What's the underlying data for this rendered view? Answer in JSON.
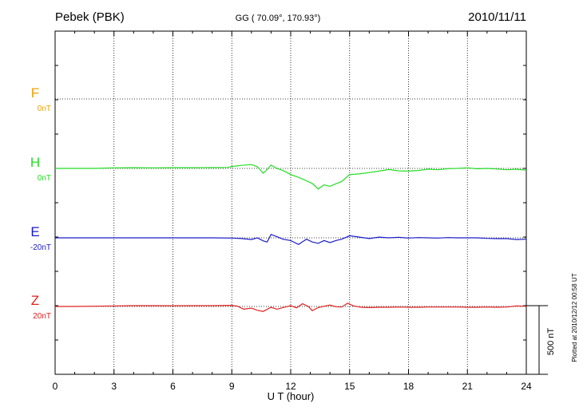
{
  "chart_data": {
    "type": "line",
    "station": "Pebek (PBK)",
    "coords": "GG ( 70.09°, 170.93°)",
    "date": "2010/11/11",
    "xlabel": "U T (hour)",
    "x_ticks": [
      "0",
      "3",
      "6",
      "9",
      "12",
      "15",
      "18",
      "21",
      "24"
    ],
    "xlim": [
      0,
      24
    ],
    "scale_label": "500 nT",
    "plotted_note": "Plotted at 2010/12/12 00:58 UT",
    "grid": true,
    "series": [
      {
        "name": "F",
        "offset": "0nT",
        "color": "#f0a000",
        "points": []
      },
      {
        "name": "H",
        "offset": "0nT",
        "color": "#22dd22",
        "points": [
          [
            0,
            0
          ],
          [
            1,
            0
          ],
          [
            2,
            0
          ],
          [
            3,
            4
          ],
          [
            4,
            5
          ],
          [
            5,
            4
          ],
          [
            6,
            5
          ],
          [
            7,
            5
          ],
          [
            8,
            6
          ],
          [
            8.8,
            7
          ],
          [
            9,
            14
          ],
          [
            9.5,
            22
          ],
          [
            10,
            28
          ],
          [
            10.3,
            12
          ],
          [
            10.6,
            -35
          ],
          [
            10.8,
            -8
          ],
          [
            11,
            24
          ],
          [
            11.3,
            0
          ],
          [
            11.6,
            -15
          ],
          [
            12,
            -45
          ],
          [
            12.4,
            -65
          ],
          [
            12.8,
            -90
          ],
          [
            13.1,
            -110
          ],
          [
            13.4,
            -150
          ],
          [
            13.7,
            -120
          ],
          [
            14,
            -130
          ],
          [
            14.3,
            -112
          ],
          [
            14.6,
            -95
          ],
          [
            15,
            -45
          ],
          [
            15.5,
            -40
          ],
          [
            16,
            -30
          ],
          [
            16.5,
            -20
          ],
          [
            17,
            -8
          ],
          [
            17.5,
            -18
          ],
          [
            18,
            -20
          ],
          [
            18.5,
            -15
          ],
          [
            19,
            -5
          ],
          [
            19.5,
            -10
          ],
          [
            20,
            -2
          ],
          [
            20.5,
            0
          ],
          [
            21,
            4
          ],
          [
            21.5,
            -3
          ],
          [
            22,
            0
          ],
          [
            22.5,
            -4
          ],
          [
            23,
            -10
          ],
          [
            23.5,
            -6
          ],
          [
            24,
            -12
          ]
        ]
      },
      {
        "name": "E",
        "offset": "-20nT",
        "color": "#1a1acc",
        "points": [
          [
            0,
            0
          ],
          [
            1,
            0
          ],
          [
            2,
            0
          ],
          [
            3,
            0
          ],
          [
            4,
            0
          ],
          [
            5,
            0
          ],
          [
            6,
            0
          ],
          [
            7,
            0
          ],
          [
            8,
            0
          ],
          [
            9,
            -2
          ],
          [
            9.5,
            -5
          ],
          [
            10,
            -12
          ],
          [
            10.3,
            0
          ],
          [
            10.6,
            -22
          ],
          [
            10.8,
            -30
          ],
          [
            11,
            25
          ],
          [
            11.3,
            8
          ],
          [
            11.6,
            -10
          ],
          [
            12,
            -20
          ],
          [
            12.4,
            -48
          ],
          [
            12.8,
            -10
          ],
          [
            13.1,
            -30
          ],
          [
            13.4,
            -40
          ],
          [
            13.7,
            -20
          ],
          [
            14,
            -35
          ],
          [
            14.3,
            -20
          ],
          [
            14.6,
            -10
          ],
          [
            15,
            15
          ],
          [
            15.5,
            5
          ],
          [
            16,
            -5
          ],
          [
            16.5,
            5
          ],
          [
            17,
            0
          ],
          [
            17.5,
            4
          ],
          [
            18,
            -2
          ],
          [
            18.5,
            2
          ],
          [
            19,
            0
          ],
          [
            19.5,
            -2
          ],
          [
            20,
            2
          ],
          [
            20.5,
            0
          ],
          [
            21,
            0
          ],
          [
            21.5,
            0
          ],
          [
            22,
            -4
          ],
          [
            22.5,
            -6
          ],
          [
            23,
            -6
          ],
          [
            23.5,
            -12
          ],
          [
            24,
            -10
          ]
        ]
      },
      {
        "name": "Z",
        "offset": "20nT",
        "color": "#e02020",
        "points": [
          [
            0,
            0
          ],
          [
            1,
            0
          ],
          [
            2,
            2
          ],
          [
            3,
            4
          ],
          [
            4,
            6
          ],
          [
            5,
            6
          ],
          [
            6,
            5
          ],
          [
            7,
            6
          ],
          [
            8,
            6
          ],
          [
            9,
            8
          ],
          [
            9.3,
            2
          ],
          [
            9.6,
            -20
          ],
          [
            10,
            -12
          ],
          [
            10.3,
            -28
          ],
          [
            10.6,
            -36
          ],
          [
            11,
            -6
          ],
          [
            11.3,
            -20
          ],
          [
            11.6,
            -8
          ],
          [
            12,
            6
          ],
          [
            12.3,
            -10
          ],
          [
            12.6,
            20
          ],
          [
            12.9,
            0
          ],
          [
            13.1,
            -30
          ],
          [
            13.4,
            -8
          ],
          [
            13.7,
            2
          ],
          [
            14,
            10
          ],
          [
            14.3,
            -2
          ],
          [
            14.6,
            -4
          ],
          [
            14.9,
            24
          ],
          [
            15.2,
            4
          ],
          [
            15.6,
            -6
          ],
          [
            16,
            -8
          ],
          [
            16.5,
            -6
          ],
          [
            17,
            -6
          ],
          [
            17.5,
            -4
          ],
          [
            18,
            -6
          ],
          [
            18.5,
            -6
          ],
          [
            19,
            -4
          ],
          [
            19.5,
            -4
          ],
          [
            20,
            -4
          ],
          [
            20.5,
            -4
          ],
          [
            21,
            -6
          ],
          [
            21.5,
            -6
          ],
          [
            22,
            -4
          ],
          [
            22.5,
            -6
          ],
          [
            23,
            -4
          ],
          [
            23.5,
            4
          ],
          [
            24,
            2
          ]
        ]
      }
    ]
  }
}
